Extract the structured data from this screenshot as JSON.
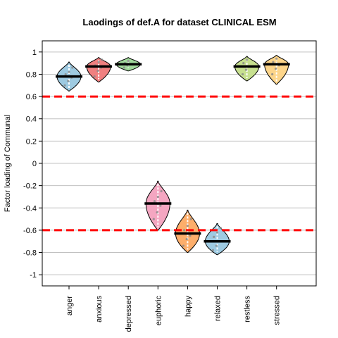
{
  "chart_data": {
    "type": "violin",
    "title": "Laodings of def.A for dataset CLINICAL ESM",
    "xlabel": "",
    "ylabel": "Factor loading of Communal",
    "ylim": [
      -1.1,
      1.1
    ],
    "yticks": [
      -1,
      -0.8,
      -0.6,
      -0.4,
      -0.2,
      0,
      0.2,
      0.4,
      0.6,
      0.8,
      1
    ],
    "ytick_labels": [
      "-1",
      "-0.8",
      "-0.6",
      "-0.4",
      "-0.2",
      "0",
      "0.2",
      "0.4",
      "0.6",
      "0.8",
      "1"
    ],
    "grid": "horizontal",
    "threshold_lines": [
      0.6,
      -0.6
    ],
    "threshold_color": "#ff0000",
    "categories": [
      "anger",
      "anxious",
      "depressed",
      "euphoric",
      "happy",
      "relaxed",
      "restless",
      "stressed"
    ],
    "colors": [
      "#9ecae1",
      "#f08080",
      "#a1d99b",
      "#f4a6c1",
      "#fdae6b",
      "#9ecae1",
      "#c7e08f",
      "#fdd58a"
    ],
    "means": [
      0.78,
      0.87,
      0.89,
      -0.36,
      -0.63,
      -0.7,
      0.87,
      0.89
    ],
    "ranges": [
      [
        0.65,
        0.91
      ],
      [
        0.73,
        0.95
      ],
      [
        0.83,
        0.95
      ],
      [
        -0.6,
        -0.16
      ],
      [
        -0.8,
        -0.42
      ],
      [
        -0.82,
        -0.54
      ],
      [
        0.74,
        0.96
      ],
      [
        0.71,
        0.97
      ]
    ],
    "points": [
      [
        0.7,
        0.74,
        0.77,
        0.8,
        0.82,
        0.86
      ],
      [
        0.78,
        0.83,
        0.86,
        0.88,
        0.91,
        0.93
      ],
      [
        0.86,
        0.88,
        0.89,
        0.9,
        0.92
      ],
      [
        -0.5,
        -0.44,
        -0.38,
        -0.34,
        -0.3,
        -0.25
      ],
      [
        -0.74,
        -0.68,
        -0.65,
        -0.6,
        -0.56,
        -0.5
      ],
      [
        -0.78,
        -0.74,
        -0.7,
        -0.66,
        -0.62,
        -0.58
      ],
      [
        0.8,
        0.84,
        0.87,
        0.9,
        0.93
      ],
      [
        0.8,
        0.85,
        0.88,
        0.91,
        0.94
      ]
    ]
  }
}
